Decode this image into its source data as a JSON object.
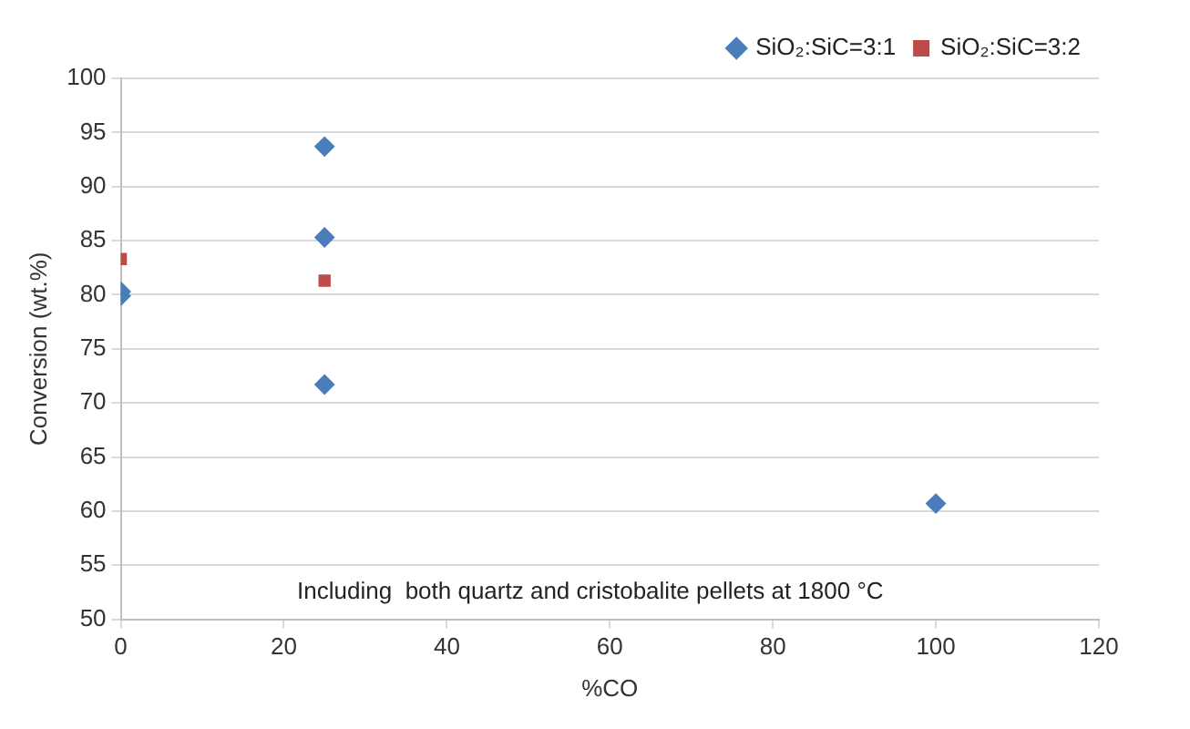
{
  "chart_data": {
    "type": "scatter",
    "xlabel": "%CO",
    "ylabel": "Conversion (wt.%)",
    "series": [
      {
        "name": "SiO₂:SiC=3:1",
        "color": "#4a7ebb",
        "marker": "diamond",
        "x": [
          0,
          0,
          25,
          25,
          25,
          100
        ],
        "values": [
          80.3,
          79.9,
          93.7,
          85.3,
          71.7,
          60.7
        ]
      },
      {
        "name": "SiO₂:SiC=3:2",
        "color": "#be4b48",
        "marker": "square",
        "x": [
          0,
          25
        ],
        "values": [
          83.3,
          81.3
        ]
      }
    ],
    "xlim": [
      0,
      120
    ],
    "xticks": [
      0,
      20,
      40,
      60,
      80,
      100,
      120
    ],
    "ylim": [
      50,
      100
    ],
    "yticks": [
      50,
      55,
      60,
      65,
      70,
      75,
      80,
      85,
      90,
      95,
      100
    ],
    "grid": "y",
    "legend": "top right",
    "annotations": [
      "Including  both quartz and cristobalite pellets at 1800 °C"
    ]
  }
}
